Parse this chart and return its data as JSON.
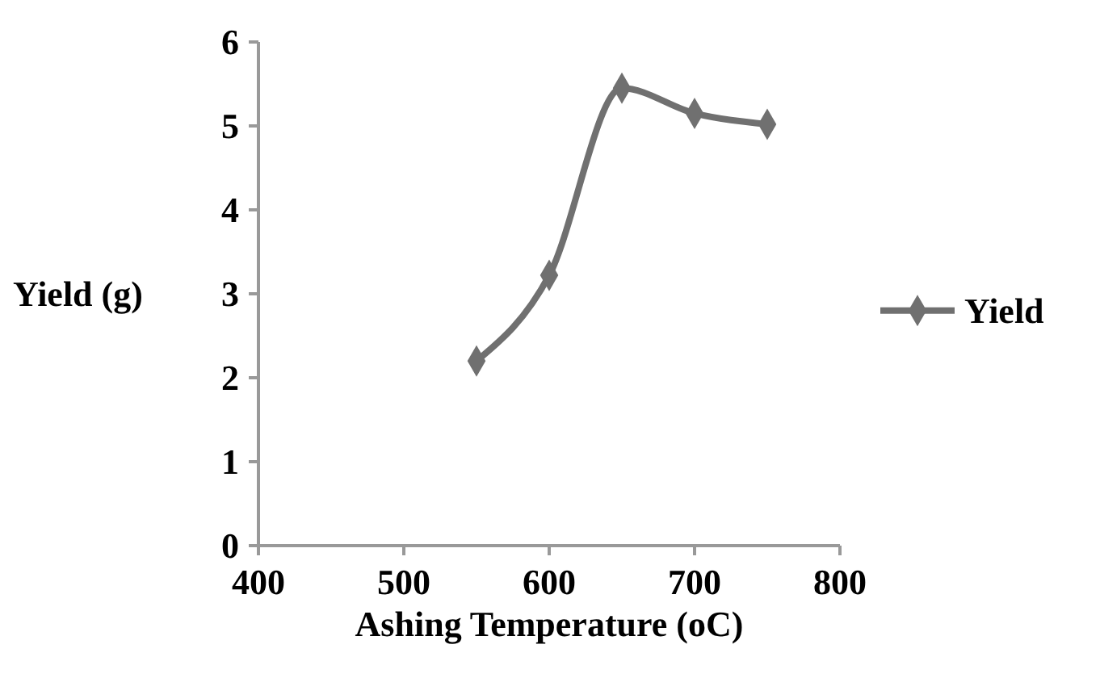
{
  "chart_data": {
    "type": "line",
    "xlabel": "Ashing Temperature (oC)",
    "ylabel": "Yield (g)",
    "x": [
      550,
      600,
      650,
      700,
      750
    ],
    "series": [
      {
        "name": "Yield",
        "color": "#707070",
        "values": [
          2.2,
          3.22,
          5.45,
          5.15,
          5.02
        ]
      }
    ],
    "xlim": [
      400,
      800
    ],
    "xticks": [
      400,
      500,
      600,
      700,
      800
    ],
    "ylim": [
      0,
      6
    ],
    "yticks": [
      0,
      1,
      2,
      3,
      4,
      5,
      6
    ],
    "marker": "diamond",
    "legend": "right",
    "grid": false
  }
}
